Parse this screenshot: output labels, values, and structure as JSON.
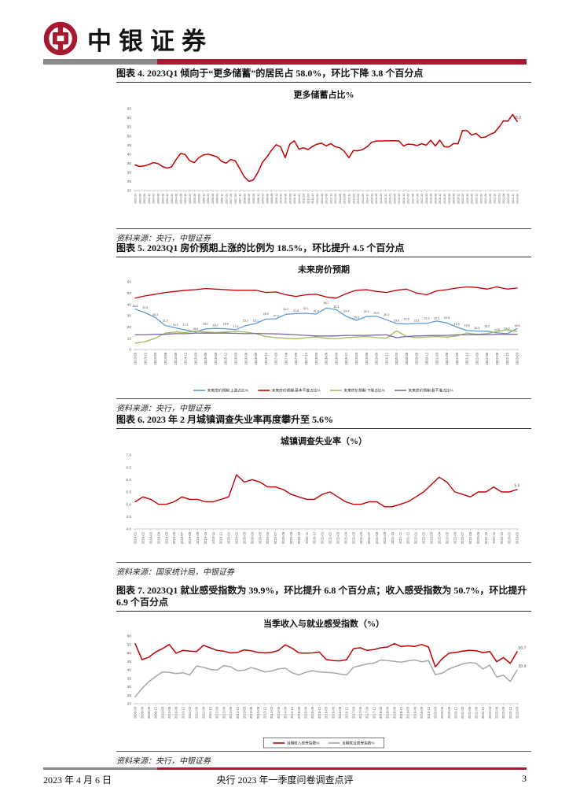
{
  "header": {
    "logo_text": "中银证券",
    "brand_color": "#a6192e"
  },
  "footer": {
    "date": "2023 年 4 月 6 日",
    "doc_title": "央行 2023 年一季度问卷调查点评",
    "page_number": "3"
  },
  "figures": [
    {
      "heading": "图表 4. 2023Q1 倾向于“更多储蓄”的居民占 58.0%，环比下降 3.8 个百分点",
      "source": "资料来源：央行，中银证券"
    },
    {
      "heading": "图表 5. 2023Q1 房价预期上涨的比例为 18.5%，环比提升 4.5 个百分点",
      "source": "资料来源：央行，中银证券"
    },
    {
      "heading": "图表 6. 2023 年 2 月城镇调查失业率再度攀升至 5.6%",
      "source": "资料来源：国家统计局，中银证券"
    },
    {
      "heading": "图表 7. 2023Q1 就业感受指数为 39.9%，环比提升 6.8 个百分点；收入感受指数为 50.7%，环比提升 6.9 个百分点",
      "source": "资料来源：央行，中银证券"
    }
  ],
  "chart_data": [
    {
      "type": "line",
      "title": "更多储蓄占比%",
      "ylim": [
        20,
        65
      ],
      "yticks": [
        "65",
        "60",
        "55",
        "50",
        "45",
        "40",
        "35",
        "30",
        "25",
        "20"
      ],
      "x": [
        "2002-03",
        "2002-06",
        "2002-09",
        "2002-12",
        "2003-03",
        "2003-06",
        "2003-09",
        "2003-12",
        "2004-03",
        "2004-06",
        "2004-09",
        "2004-12",
        "2005-03",
        "2005-06",
        "2005-09",
        "2005-12",
        "2006-03",
        "2006-06",
        "2006-09",
        "2006-12",
        "2007-03",
        "2007-06",
        "2007-09",
        "2007-12",
        "2008-03",
        "2008-06",
        "2008-09",
        "2008-12",
        "2009-03",
        "2009-06",
        "2009-09",
        "2009-12",
        "2010-03",
        "2010-06",
        "2010-09",
        "2010-12",
        "2011-03",
        "2011-06",
        "2011-09",
        "2011-12",
        "2012-03",
        "2012-06",
        "2012-09",
        "2012-12",
        "2013-03",
        "2013-06",
        "2013-09",
        "2013-12",
        "2014-03",
        "2014-06",
        "2014-09",
        "2014-12",
        "2015-03",
        "2015-06",
        "2015-09",
        "2015-12",
        "2016-03",
        "2016-06",
        "2016-09",
        "2016-12",
        "2017-03",
        "2017-06",
        "2017-09",
        "2017-12",
        "2018-03",
        "2018-06",
        "2018-09",
        "2018-12",
        "2019-03",
        "2019-06",
        "2019-09",
        "2019-12",
        "2020-03",
        "2020-06",
        "2020-09",
        "2020-12",
        "2021-03",
        "2021-06",
        "2021-09",
        "2021-12",
        "2022-03",
        "2022-06",
        "2022-09",
        "2022-12",
        "2023-03"
      ],
      "series": [
        {
          "name": "更多储蓄占比%",
          "color": "#C00000",
          "end_label": "58.0",
          "values": [
            34.0,
            33.2,
            33.5,
            34.3,
            35.3,
            34.8,
            33.2,
            32.3,
            33.0,
            37.0,
            40.4,
            39.8,
            36.3,
            35.3,
            38.0,
            39.5,
            40.0,
            39.3,
            38.5,
            36.0,
            35.0,
            37.0,
            36.3,
            32.0,
            27.5,
            25.0,
            25.8,
            30.0,
            35.5,
            38.5,
            42.2,
            45.2,
            44.0,
            38.0,
            45.5,
            47.3,
            42.7,
            43.5,
            42.5,
            44.2,
            45.5,
            46.0,
            44.5,
            45.8,
            44.0,
            43.5,
            41.5,
            38.0,
            42.0,
            41.8,
            42.5,
            44.0,
            46.5,
            47.2,
            47.2,
            47.3,
            47.3,
            47.4,
            47.2,
            44.5,
            45.5,
            45.3,
            44.7,
            45.7,
            44.9,
            47.6,
            44.5,
            47.7,
            44.0,
            43.9,
            45.8,
            45.7,
            53.0,
            52.9,
            50.4,
            51.4,
            49.1,
            49.4,
            50.8,
            51.8,
            54.7,
            58.3,
            58.1,
            61.8,
            58.0
          ]
        }
      ]
    },
    {
      "type": "line",
      "title": "未来房价预期",
      "ylim": [
        0,
        60
      ],
      "yticks": [
        "60",
        "50",
        "40",
        "30",
        "20",
        "10",
        "0"
      ],
      "x": [
        "2013-09",
        "2013-12",
        "2014-03",
        "2014-06",
        "2014-09",
        "2014-12",
        "2015-03",
        "2015-06",
        "2015-09",
        "2015-12",
        "2016-03",
        "2016-06",
        "2016-09",
        "2016-12",
        "2017-03",
        "2017-06",
        "2017-09",
        "2017-12",
        "2018-03",
        "2018-06",
        "2018-09",
        "2018-12",
        "2019-03",
        "2019-06",
        "2019-09",
        "2019-12",
        "2020-03",
        "2020-06",
        "2020-09",
        "2020-12",
        "2021-03",
        "2021-06",
        "2021-09",
        "2021-12",
        "2022-03",
        "2022-06",
        "2022-09",
        "2022-12",
        "2023-03"
      ],
      "series": [
        {
          "name": "未来房价预期:上涨占比%",
          "color": "#5B9BD5",
          "point_labels": true,
          "values": [
            35.8,
            32.5,
            28.3,
            21.2,
            19.2,
            17.3,
            15.6,
            18.2,
            18.7,
            18.4,
            17.6,
            21.1,
            23.1,
            26.9,
            27.2,
            31.2,
            31.8,
            32.1,
            31.4,
            36.7,
            35.3,
            29.4,
            25.8,
            29.2,
            29.5,
            26.3,
            23.0,
            22.6,
            23.1,
            23.1,
            25.2,
            23.5,
            19.9,
            16.8,
            16.3,
            16.2,
            14.8,
            14.0,
            18.5
          ]
        },
        {
          "name": "未来房价预期:基本不变占比%",
          "color": "#C00000",
          "values": [
            45.5,
            47.5,
            49.0,
            50.5,
            51.5,
            52.5,
            53.0,
            54.0,
            53.5,
            53.0,
            52.5,
            52.5,
            52.5,
            50.5,
            51.0,
            48.5,
            47.0,
            48.5,
            49.0,
            46.5,
            45.5,
            49.5,
            52.5,
            53.0,
            51.5,
            50.5,
            52.5,
            53.5,
            50.0,
            48.5,
            52.0,
            53.0,
            54.5,
            55.5,
            55.0,
            53.5,
            55.5,
            53.5,
            54.5
          ]
        },
        {
          "name": "未来房价预期:下降占比%",
          "color": "#9BBB59",
          "values": [
            5.5,
            7.0,
            10.0,
            14.5,
            15.5,
            15.0,
            16.3,
            15.5,
            15.0,
            15.5,
            16.0,
            15.5,
            14.0,
            11.5,
            10.5,
            10.0,
            9.5,
            10.5,
            11.0,
            10.0,
            9.5,
            10.5,
            11.0,
            11.5,
            10.5,
            10.0,
            16.5,
            11.5,
            10.5,
            11.0,
            11.5,
            11.0,
            12.0,
            14.5,
            13.5,
            14.0,
            16.0,
            17.5,
            16.0
          ]
        },
        {
          "name": "未来房价预期:看不准占比%",
          "color": "#8064A2",
          "values": [
            13.0,
            13.0,
            13.5,
            13.5,
            14.0,
            14.0,
            14.5,
            14.5,
            14.5,
            14.5,
            14.3,
            14.0,
            14.2,
            14.0,
            13.8,
            13.5,
            13.0,
            12.5,
            12.0,
            12.0,
            12.0,
            12.5,
            12.5,
            12.5,
            12.8,
            13.0,
            10.5,
            11.5,
            12.0,
            12.3,
            12.5,
            12.5,
            13.0,
            13.0,
            13.0,
            13.2,
            13.4,
            13.5,
            13.5
          ]
        }
      ],
      "legend": {
        "boxed": false,
        "items": [
          {
            "label": "未来房价预期:上涨占比%",
            "color": "#5B9BD5"
          },
          {
            "label": "未来房价预期:基本不变占比%",
            "color": "#C00000"
          },
          {
            "label": "未来房价预期:下降占比%",
            "color": "#9BBB59"
          },
          {
            "label": "未来房价预期:看不准占比%",
            "color": "#8064A2"
          }
        ]
      }
    },
    {
      "type": "line",
      "title": "城镇调查失业率（%）",
      "ylim": [
        4.0,
        7.0
      ],
      "yticks": [
        "7.0",
        "6.5",
        "6.0",
        "5.5",
        "5.0",
        "4.5",
        "4.0"
      ],
      "x": [
        "2019-01",
        "2019-02",
        "2019-03",
        "2019-04",
        "2019-05",
        "2019-06",
        "2019-07",
        "2019-08",
        "2019-09",
        "2019-10",
        "2019-11",
        "2019-12",
        "2020-01",
        "2020-02",
        "2020-03",
        "2020-04",
        "2020-05",
        "2020-06",
        "2020-07",
        "2020-08",
        "2020-09",
        "2020-10",
        "2020-11",
        "2020-12",
        "2021-01",
        "2021-02",
        "2021-03",
        "2021-04",
        "2021-05",
        "2021-06",
        "2021-07",
        "2021-08",
        "2021-09",
        "2021-10",
        "2021-11",
        "2021-12",
        "2022-01",
        "2022-02",
        "2022-03",
        "2022-04",
        "2022-05",
        "2022-06",
        "2022-07",
        "2022-08",
        "2022-09",
        "2022-10",
        "2022-11",
        "2022-12",
        "2023-01",
        "2023-02"
      ],
      "series": [
        {
          "name": "城镇调查失业率（%）",
          "color": "#C00000",
          "end_label": "5.6",
          "values": [
            5.1,
            5.3,
            5.2,
            5.0,
            5.0,
            5.1,
            5.3,
            5.2,
            5.2,
            5.1,
            5.1,
            5.2,
            5.3,
            6.2,
            5.9,
            6.0,
            5.9,
            5.7,
            5.7,
            5.6,
            5.4,
            5.3,
            5.2,
            5.2,
            5.4,
            5.5,
            5.3,
            5.1,
            5.0,
            5.0,
            5.1,
            5.1,
            4.9,
            4.9,
            5.0,
            5.1,
            5.3,
            5.5,
            5.8,
            6.1,
            5.9,
            5.5,
            5.4,
            5.3,
            5.5,
            5.5,
            5.7,
            5.5,
            5.5,
            5.6
          ]
        }
      ]
    },
    {
      "type": "line",
      "title": "当季收入与就业感受指数（%）",
      "ylim": [
        20,
        60
      ],
      "yticks": [
        "60",
        "55",
        "50",
        "45",
        "40",
        "35",
        "30",
        "25",
        "20"
      ],
      "x": [
        "2009-03",
        "2009-06",
        "2009-09",
        "2009-12",
        "2010-03",
        "2010-06",
        "2010-09",
        "2010-12",
        "2011-03",
        "2011-06",
        "2011-09",
        "2011-12",
        "2012-03",
        "2012-06",
        "2012-09",
        "2012-12",
        "2013-03",
        "2013-06",
        "2013-09",
        "2013-12",
        "2014-03",
        "2014-06",
        "2014-09",
        "2014-12",
        "2015-03",
        "2015-06",
        "2015-09",
        "2015-12",
        "2016-03",
        "2016-06",
        "2016-09",
        "2016-12",
        "2017-03",
        "2017-06",
        "2017-09",
        "2017-12",
        "2018-03",
        "2018-06",
        "2018-09",
        "2018-12",
        "2019-03",
        "2019-06",
        "2019-09",
        "2019-12",
        "2020-03",
        "2020-06",
        "2020-09",
        "2020-12",
        "2021-03",
        "2021-06",
        "2021-09",
        "2021-12",
        "2022-03",
        "2022-06",
        "2022-09",
        "2022-12",
        "2023-03"
      ],
      "series": [
        {
          "name": "当期收入感受指数%",
          "color": "#C00000",
          "end_label": "50.7",
          "values": [
            55.5,
            46.0,
            47.5,
            50.5,
            52.5,
            55.0,
            49.8,
            51.5,
            51.0,
            50.8,
            54.5,
            53.0,
            51.5,
            51.0,
            50.0,
            50.3,
            51.8,
            51.3,
            50.3,
            50.0,
            50.3,
            51.5,
            54.8,
            52.8,
            50.0,
            49.8,
            50.0,
            50.5,
            46.2,
            45.5,
            45.3,
            46.0,
            52.5,
            53.0,
            51.5,
            52.0,
            53.0,
            53.5,
            55.5,
            53.8,
            54.2,
            53.8,
            55.0,
            53.5,
            41.8,
            46.5,
            49.8,
            50.3,
            51.0,
            51.5,
            51.3,
            50.2,
            50.8,
            44.8,
            47.2,
            43.8,
            50.7
          ]
        },
        {
          "name": "当期就业感受指数%",
          "color": "#A6A6A6",
          "end_label": "39.9",
          "values": [
            24.0,
            29.0,
            33.0,
            36.0,
            38.8,
            38.5,
            37.8,
            38.3,
            37.0,
            42.3,
            41.5,
            40.3,
            39.8,
            42.5,
            41.8,
            39.5,
            39.8,
            41.3,
            40.3,
            38.8,
            39.3,
            40.5,
            41.0,
            38.3,
            37.0,
            38.5,
            39.5,
            38.8,
            38.5,
            38.3,
            37.5,
            37.0,
            41.5,
            42.5,
            43.5,
            44.0,
            45.8,
            45.5,
            45.0,
            44.5,
            45.3,
            45.8,
            44.8,
            45.5,
            37.2,
            38.0,
            40.5,
            42.0,
            43.5,
            44.3,
            43.8,
            40.5,
            42.8,
            35.8,
            36.8,
            33.1,
            39.9
          ]
        }
      ],
      "legend": {
        "boxed": true,
        "items": [
          {
            "label": "当期收入感受指数%",
            "color": "#C00000"
          },
          {
            "label": "当期就业感受指数%",
            "color": "#A6A6A6"
          }
        ]
      }
    }
  ]
}
